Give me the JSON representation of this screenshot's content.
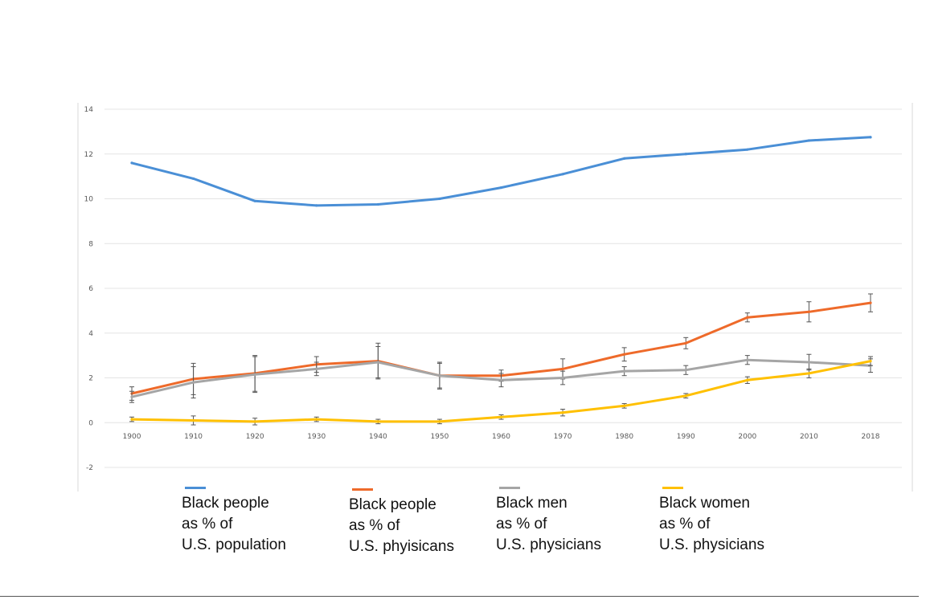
{
  "chart_data": {
    "type": "line",
    "title": "",
    "xlabel": "",
    "ylabel": "",
    "x": [
      "1900",
      "1910",
      "1920",
      "1930",
      "1940",
      "1950",
      "1960",
      "1970",
      "1980",
      "1990",
      "2000",
      "2010",
      "2018"
    ],
    "y_ticks": [
      "14",
      "12",
      "10",
      "8",
      "6",
      "4",
      "2",
      "0",
      "-2"
    ],
    "ylim": [
      -2,
      14
    ],
    "grid": true,
    "legend_position": "bottom",
    "series": [
      {
        "name": "Black people as % of U.S. population",
        "color": "#4a8fd6",
        "values": [
          11.6,
          10.9,
          9.9,
          9.7,
          9.75,
          10.0,
          10.5,
          11.1,
          11.8,
          12.0,
          12.2,
          12.6,
          12.75
        ],
        "error": null
      },
      {
        "name": "Black people as % of U.S. phyisicans",
        "color": "#ee6a2a",
        "values": [
          1.3,
          1.95,
          2.2,
          2.6,
          2.75,
          2.1,
          2.1,
          2.4,
          3.05,
          3.55,
          4.7,
          4.95,
          5.35
        ],
        "error": [
          0.3,
          0.7,
          0.8,
          0.35,
          0.8,
          0.6,
          0.25,
          0.45,
          0.3,
          0.25,
          0.2,
          0.45,
          0.4
        ]
      },
      {
        "name": "Black men as % of U.S. physicians",
        "color": "#a5a5a5",
        "values": [
          1.15,
          1.8,
          2.15,
          2.4,
          2.7,
          2.1,
          1.9,
          2.0,
          2.3,
          2.35,
          2.8,
          2.7,
          2.55
        ],
        "error": [
          0.25,
          0.7,
          0.8,
          0.3,
          0.7,
          0.55,
          0.3,
          0.3,
          0.2,
          0.2,
          0.2,
          0.35,
          0.3
        ]
      },
      {
        "name": "Black women as % of U.S. physicians",
        "color": "#ffc000",
        "values": [
          0.15,
          0.1,
          0.05,
          0.15,
          0.05,
          0.05,
          0.25,
          0.45,
          0.75,
          1.2,
          1.9,
          2.2,
          2.75
        ],
        "error": [
          0.1,
          0.2,
          0.15,
          0.1,
          0.1,
          0.1,
          0.1,
          0.15,
          0.1,
          0.1,
          0.15,
          0.2,
          0.2
        ]
      }
    ]
  },
  "legend": [
    {
      "text": "Black people\nas % of\nU.S. population",
      "color": "#4a8fd6"
    },
    {
      "text": "Black people\nas % of\nU.S. phyisicans",
      "color": "#ee6a2a"
    },
    {
      "text": "Black men\nas % of\nU.S. physicians",
      "color": "#a5a5a5"
    },
    {
      "text": "Black women\nas % of\nU.S. physicians",
      "color": "#ffc000"
    }
  ]
}
